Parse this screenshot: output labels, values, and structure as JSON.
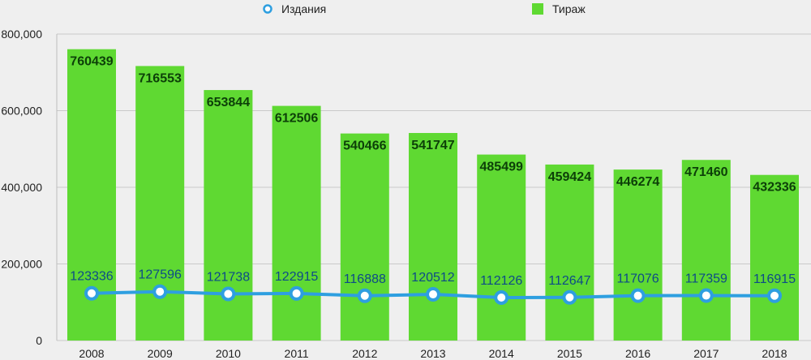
{
  "chart_data": {
    "type": "bar",
    "categories": [
      "2008",
      "2009",
      "2010",
      "2011",
      "2012",
      "2013",
      "2014",
      "2015",
      "2016",
      "2017",
      "2018"
    ],
    "series": [
      {
        "name": "Тираж",
        "type": "bar",
        "color": "#5fd932",
        "values": [
          760439,
          716553,
          653844,
          612506,
          540466,
          541747,
          485499,
          459424,
          446274,
          471460,
          432336
        ],
        "labels": [
          "760439",
          "716553",
          "653844",
          "612506",
          "540466",
          "541747",
          "485499",
          "459424",
          "446274",
          "471460",
          "432336"
        ]
      },
      {
        "name": "Издания",
        "type": "line",
        "color": "#2e9fe0",
        "values": [
          123336,
          127596,
          121738,
          122915,
          116888,
          120512,
          112126,
          112647,
          117076,
          117359,
          116915
        ],
        "labels": [
          "123336",
          "127596",
          "121738",
          "122915",
          "116888",
          "120512",
          "112126",
          "112647",
          "117076",
          "117359",
          "116915"
        ]
      }
    ],
    "yticks": [
      {
        "value": 0,
        "label": "0"
      },
      {
        "value": 200000,
        "label": "200,000"
      },
      {
        "value": 400000,
        "label": "400,000"
      },
      {
        "value": 600000,
        "label": "600,000"
      },
      {
        "value": 800000,
        "label": "800,000"
      }
    ],
    "ylim": [
      0,
      800000
    ],
    "grid": true,
    "legend_position": "top"
  }
}
